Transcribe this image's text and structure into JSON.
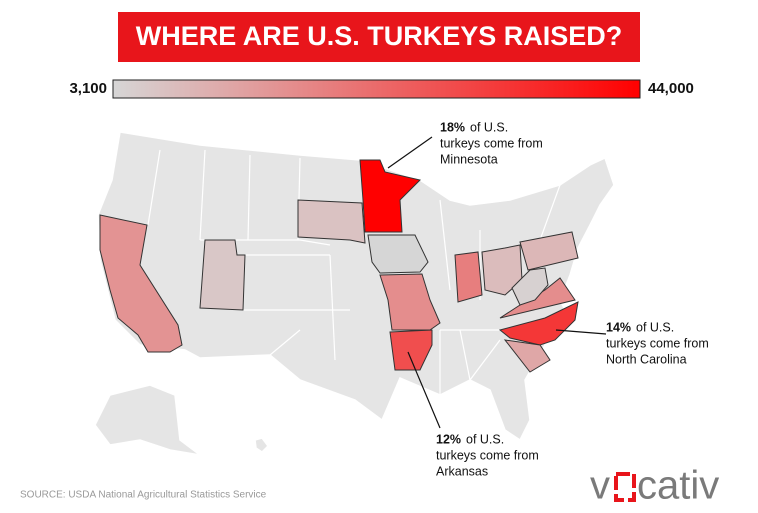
{
  "chart_data": {
    "type": "choropleth",
    "title": "WHERE ARE U.S. TURKEYS RAISED?",
    "color_range": [
      3100,
      44000
    ],
    "color_ticks": [
      {
        "value": 3100,
        "label": "3,100"
      },
      {
        "value": 44000,
        "label": "44,000"
      }
    ],
    "colors": [
      "#d6d6d6",
      "#ff0000"
    ],
    "values": [
      44000,
      33500,
      29000,
      20000,
      17000,
      17000,
      16000,
      12000,
      8000,
      9000,
      7000,
      6000,
      4000,
      3100
    ],
    "annotations": [
      {
        "bold": "18%",
        "text": [
          "of U.S.",
          "turkeys come from",
          "Minnesota"
        ]
      },
      {
        "bold": "14%",
        "text": [
          "of U.S.",
          "turkeys come from",
          "North Carolina"
        ]
      },
      {
        "bold": "12%",
        "text": [
          "of U.S.",
          "turkeys come from",
          "Arkansas"
        ]
      }
    ],
    "source": "SOURCE: USDA National Agricultural Statistics Service",
    "logo": {
      "left": "v",
      "right": "cativ"
    }
  }
}
